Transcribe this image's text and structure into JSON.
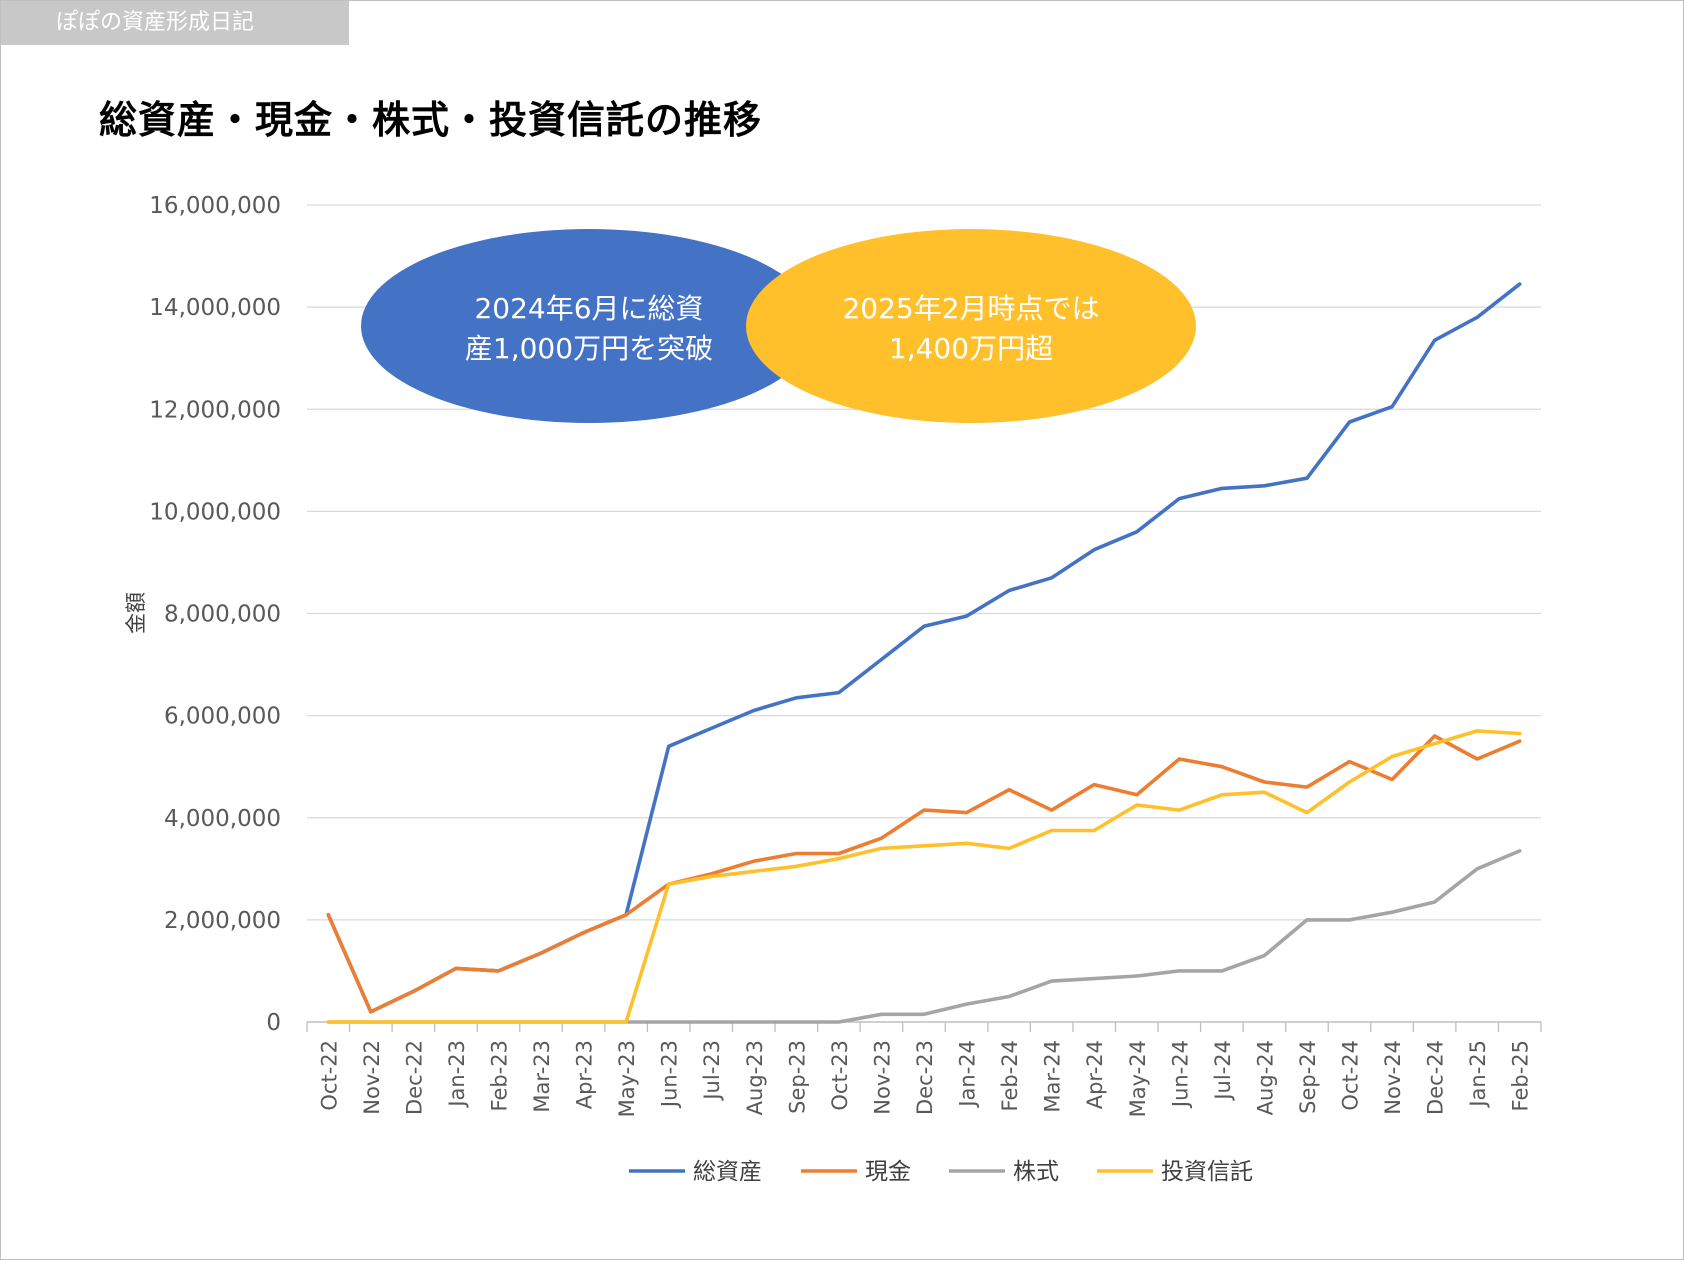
{
  "header": {
    "blog_tag": "ぽぽの資産形成日記",
    "title": "総資産・現金・株式・投資信託の推移"
  },
  "annotations": [
    {
      "lines": [
        "2024年6月に総資",
        "産1,000万円を突破"
      ],
      "color": "#4472c4"
    },
    {
      "lines": [
        "2025年2月時点では",
        "1,400万円超"
      ],
      "color": "#ffc02b"
    }
  ],
  "chart_data": {
    "type": "line",
    "title": "総資産・現金・株式・投資信託の推移",
    "xlabel": "",
    "ylabel": "金額",
    "ylim": [
      0,
      16000000
    ],
    "yticks": [
      0,
      2000000,
      4000000,
      6000000,
      8000000,
      10000000,
      12000000,
      14000000,
      16000000
    ],
    "ytick_labels": [
      "0",
      "2,000,000",
      "4,000,000",
      "6,000,000",
      "8,000,000",
      "10,000,000",
      "12,000,000",
      "14,000,000",
      "16,000,000"
    ],
    "grid": true,
    "legend_position": "bottom",
    "categories": [
      "Oct-22",
      "Nov-22",
      "Dec-22",
      "Jan-23",
      "Feb-23",
      "Mar-23",
      "Apr-23",
      "May-23",
      "Jun-23",
      "Jul-23",
      "Aug-23",
      "Sep-23",
      "Oct-23",
      "Nov-23",
      "Dec-23",
      "Jan-24",
      "Feb-24",
      "Mar-24",
      "Apr-24",
      "May-24",
      "Jun-24",
      "Jul-24",
      "Aug-24",
      "Sep-24",
      "Oct-24",
      "Nov-24",
      "Dec-24",
      "Jan-25",
      "Feb-25"
    ],
    "series": [
      {
        "name": "総資産",
        "color": "#4472c4",
        "values": [
          2100000,
          200000,
          600000,
          1050000,
          1000000,
          1350000,
          1750000,
          2100000,
          5400000,
          5750000,
          6100000,
          6350000,
          6450000,
          7100000,
          7750000,
          7950000,
          8450000,
          8700000,
          9250000,
          9600000,
          10250000,
          10450000,
          10500000,
          10650000,
          11750000,
          12050000,
          13350000,
          13800000,
          14450000
        ]
      },
      {
        "name": "現金",
        "color": "#ed7d31",
        "values": [
          2100000,
          200000,
          600000,
          1050000,
          1000000,
          1350000,
          1750000,
          2100000,
          2700000,
          2900000,
          3150000,
          3300000,
          3300000,
          3600000,
          4150000,
          4100000,
          4550000,
          4150000,
          4650000,
          4450000,
          5150000,
          5000000,
          4700000,
          4600000,
          5100000,
          4750000,
          5600000,
          5150000,
          5500000
        ]
      },
      {
        "name": "株式",
        "color": "#a5a5a5",
        "values": [
          0,
          0,
          0,
          0,
          0,
          0,
          0,
          0,
          0,
          0,
          0,
          0,
          0,
          150000,
          150000,
          350000,
          500000,
          800000,
          850000,
          900000,
          1000000,
          1000000,
          1300000,
          2000000,
          2000000,
          2150000,
          2350000,
          3000000,
          3350000
        ]
      },
      {
        "name": "投資信託",
        "color": "#ffc02b",
        "values": [
          0,
          0,
          0,
          0,
          0,
          0,
          0,
          0,
          2700000,
          2850000,
          2950000,
          3050000,
          3200000,
          3400000,
          3450000,
          3500000,
          3400000,
          3750000,
          3750000,
          4250000,
          4150000,
          4450000,
          4500000,
          4100000,
          4700000,
          5200000,
          5450000,
          5700000,
          5650000
        ]
      }
    ]
  }
}
